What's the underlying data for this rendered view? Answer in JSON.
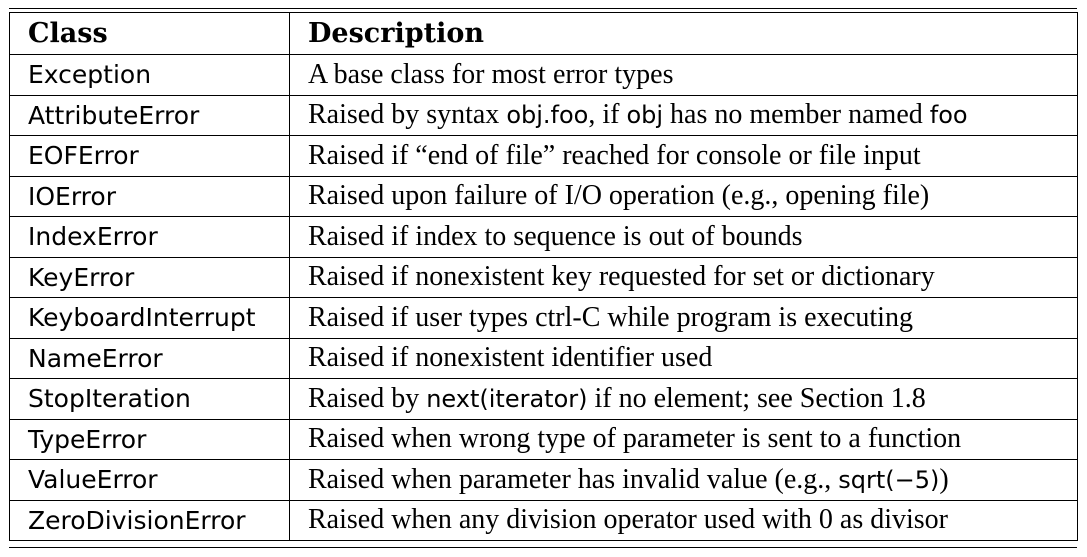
{
  "table": {
    "headers": {
      "class": "Class",
      "description": "Description"
    },
    "rows": [
      {
        "class": "Exception",
        "parts": [
          {
            "t": "A base class for most error types"
          }
        ]
      },
      {
        "class": "AttributeError",
        "parts": [
          {
            "t": "Raised by syntax "
          },
          {
            "t": "obj.foo",
            "sans": true
          },
          {
            "t": ", if "
          },
          {
            "t": "obj",
            "sans": true
          },
          {
            "t": " has no member named "
          },
          {
            "t": "foo",
            "sans": true
          }
        ]
      },
      {
        "class": "EOFError",
        "parts": [
          {
            "t": "Raised if “end of file” reached for console or file input"
          }
        ]
      },
      {
        "class": "IOError",
        "parts": [
          {
            "t": "Raised upon failure of I/O operation (e.g., opening file)"
          }
        ]
      },
      {
        "class": "IndexError",
        "parts": [
          {
            "t": "Raised if index to sequence is out of bounds"
          }
        ]
      },
      {
        "class": "KeyError",
        "parts": [
          {
            "t": "Raised if nonexistent key requested for set or dictionary"
          }
        ]
      },
      {
        "class": "KeyboardInterrupt",
        "parts": [
          {
            "t": "Raised if user types ctrl-C while program is executing"
          }
        ]
      },
      {
        "class": "NameError",
        "parts": [
          {
            "t": "Raised if nonexistent identifier used"
          }
        ]
      },
      {
        "class": "StopIteration",
        "parts": [
          {
            "t": "Raised by "
          },
          {
            "t": "next(iterator)",
            "sans": true
          },
          {
            "t": " if no element; see Section 1.8"
          }
        ]
      },
      {
        "class": "TypeError",
        "parts": [
          {
            "t": "Raised when wrong type of parameter is sent to a function"
          }
        ]
      },
      {
        "class": "ValueError",
        "parts": [
          {
            "t": "Raised when parameter has invalid value (e.g., "
          },
          {
            "t": "sqrt(−5)",
            "sans": true
          },
          {
            "t": ")"
          }
        ]
      },
      {
        "class": "ZeroDivisionError",
        "parts": [
          {
            "t": "Raised when any division operator used with 0 as divisor"
          }
        ]
      }
    ]
  }
}
